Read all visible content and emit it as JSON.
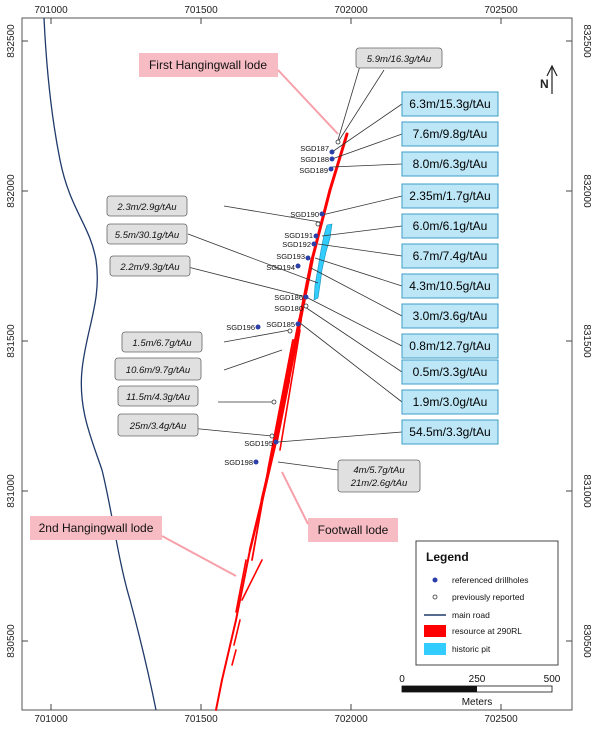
{
  "axes": {
    "x_ticks": [
      "701000",
      "701500",
      "702000",
      "702500"
    ],
    "y_ticks": [
      "832500",
      "832000",
      "831500",
      "831000",
      "830500"
    ]
  },
  "lode_labels": {
    "first_hangingwall": "First Hangingwall lode",
    "second_hangingwall": "2nd Hangingwall lode",
    "footwall": "Footwall lode"
  },
  "drillholes": [
    "SGD187",
    "SGD188",
    "SGD189",
    "SGD190",
    "SGD191",
    "SGD192",
    "SGD193",
    "SGD194",
    "SGD186",
    "SGD180",
    "SGD196",
    "SGD185",
    "SGD195",
    "SGD198"
  ],
  "intercepts_new": [
    "6.3m/15.3g/tAu",
    "7.6m/9.8g/tAu",
    "8.0m/6.3g/tAu",
    "2.35m/1.7g/tAu",
    "6.0m/6.1g/tAu",
    "6.7m/7.4g/tAu",
    "4.3m/10.5g/tAu",
    "3.0m/3.6g/tAu",
    "0.8m/12.7g/tAu",
    "0.5m/3.3g/tAu",
    "1.9m/3.0g/tAu",
    "54.5m/3.3g/tAu"
  ],
  "intercepts_previous": [
    "5.9m/16.3g/tAu",
    "2.3m/2.9g/tAu",
    "5.5m/30.1g/tAu",
    "2.2m/9.3g/tAu",
    "1.5m/6.7g/tAu",
    "10.6m/9.7g/tAu",
    "11.5m/4.3g/tAu",
    "25m/3.4g/tAu",
    "4m/5.7g/tAu",
    "21m/2.6g/tAu"
  ],
  "legend": {
    "title": "Legend",
    "items": [
      "referenced drillholes",
      "previously reported",
      "main road",
      "resource at 290RL",
      "historic pit"
    ]
  },
  "scale_bar": {
    "ticks": [
      "0",
      "250",
      "500"
    ],
    "unit": "Meters"
  },
  "north_arrow": "N",
  "colors": {
    "resource": "#ff0000",
    "historic_pit": "#33ccff",
    "road": "#1f3a6b",
    "new_box": "#bde6f6",
    "new_box_border": "#3d9dc8",
    "prev_box": "#e0e0e0",
    "lode_label_bg": "#f7bcc3"
  }
}
